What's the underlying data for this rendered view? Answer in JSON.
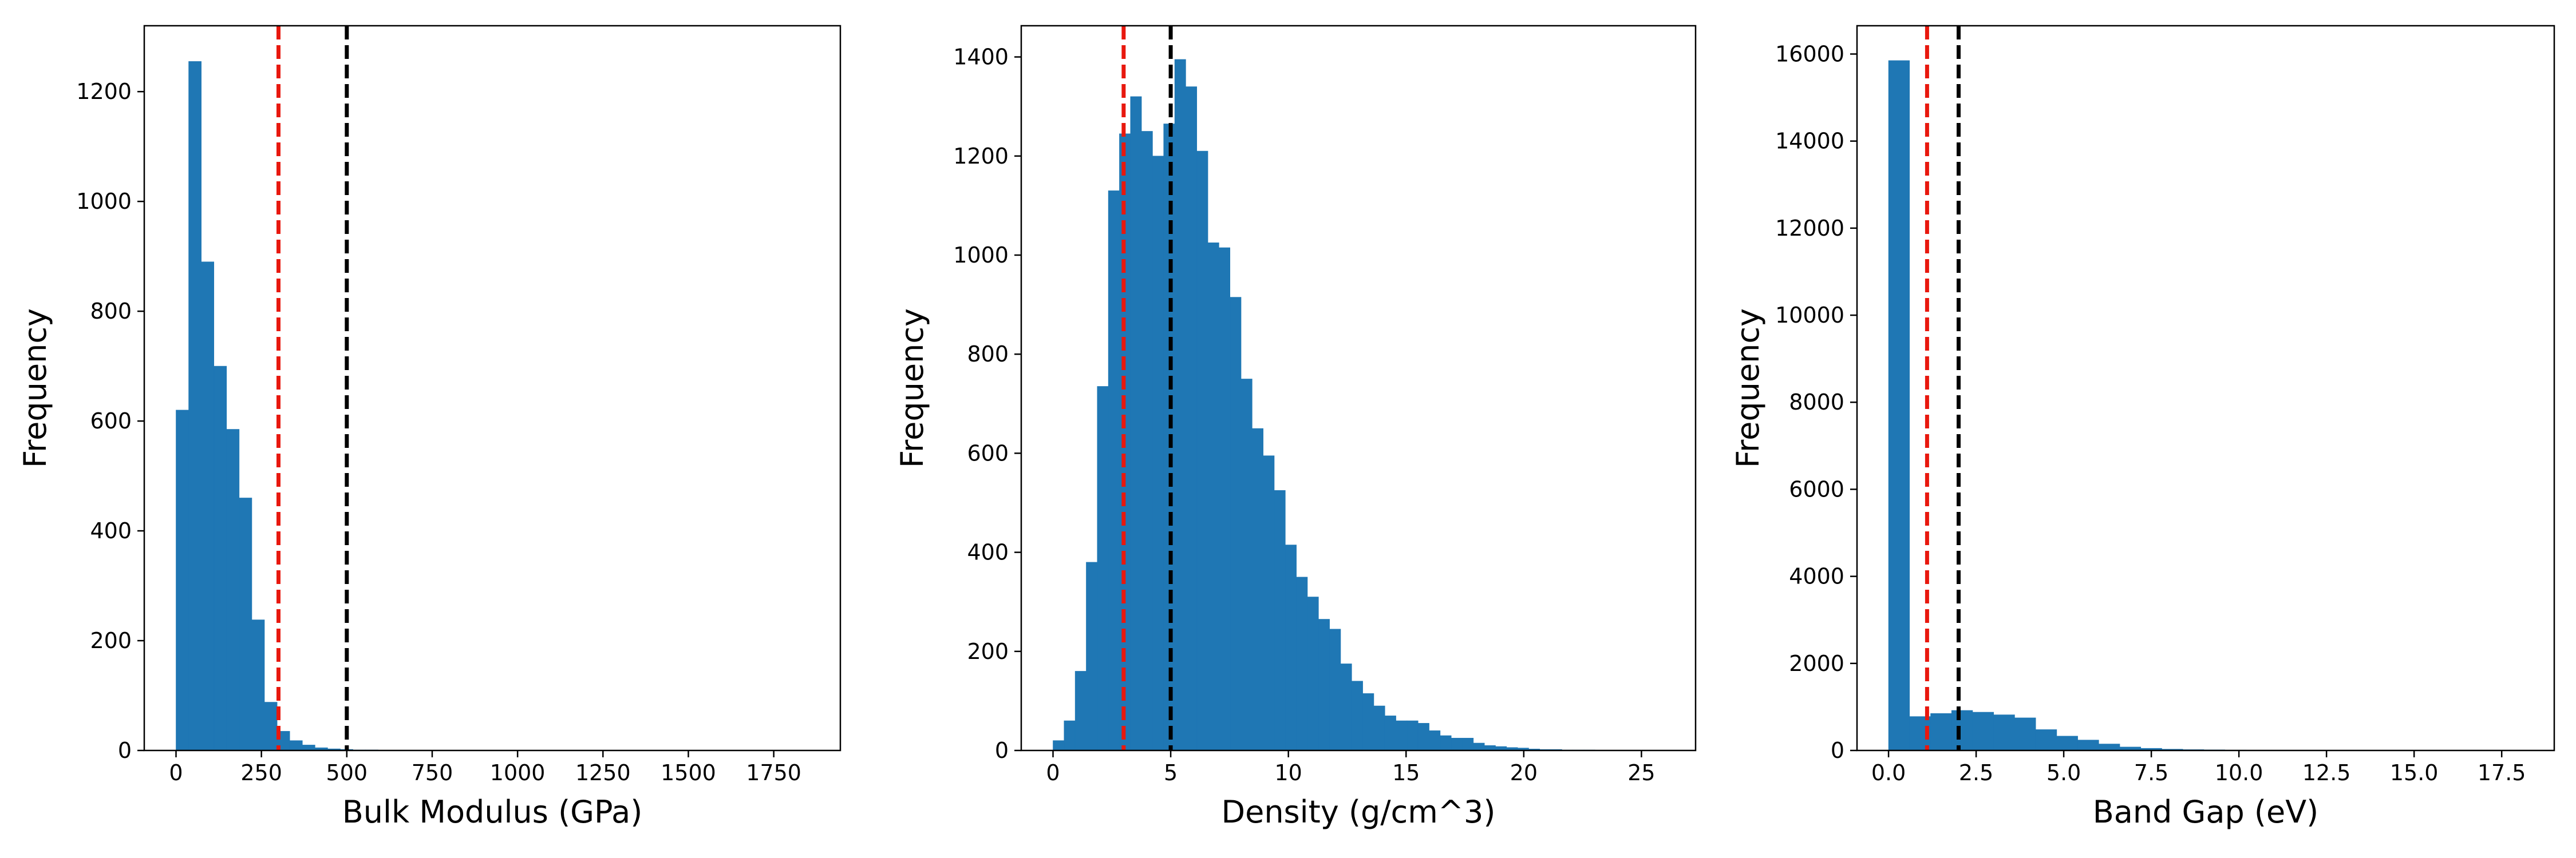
{
  "colors": {
    "bar": "#1f77b4",
    "red_line": "#e8180e",
    "black_line": "#000000",
    "axis": "#000000"
  },
  "chart_data": [
    {
      "type": "bar",
      "title": "",
      "xlabel": "Bulk Modulus (GPa)",
      "ylabel": "Frequency",
      "xlim": [
        -93,
        1945
      ],
      "ylim": [
        0,
        1320
      ],
      "xticks": [
        0,
        250,
        500,
        750,
        1000,
        1250,
        1500,
        1750
      ],
      "xtick_labels": [
        "0",
        "250",
        "500",
        "750",
        "1000",
        "1250",
        "1500",
        "1750"
      ],
      "yticks": [
        0,
        200,
        400,
        600,
        800,
        1000,
        1200
      ],
      "ytick_labels": [
        "0",
        "200",
        "400",
        "600",
        "800",
        "1000",
        "1200"
      ],
      "bin_width": 37,
      "bin_starts": [
        0,
        37,
        74,
        111,
        148,
        185,
        222,
        259,
        296,
        333,
        370,
        407,
        444,
        481,
        518,
        555
      ],
      "values": [
        620,
        1255,
        890,
        700,
        585,
        460,
        238,
        88,
        35,
        18,
        10,
        5,
        3,
        2,
        1,
        1
      ],
      "vlines": [
        {
          "x": 300,
          "color": "red",
          "style": "dashed"
        },
        {
          "x": 500,
          "color": "black",
          "style": "dashed"
        }
      ],
      "grid": false
    },
    {
      "type": "bar",
      "title": "",
      "xlabel": "Density (g/cm^3)",
      "ylabel": "Frequency",
      "xlim": [
        -1.35,
        27.3
      ],
      "ylim": [
        0,
        1463
      ],
      "xticks": [
        0,
        5,
        10,
        15,
        20,
        25
      ],
      "xtick_labels": [
        "0",
        "5",
        "10",
        "15",
        "20",
        "25"
      ],
      "yticks": [
        0,
        200,
        400,
        600,
        800,
        1000,
        1200,
        1400
      ],
      "ytick_labels": [
        "0",
        "200",
        "400",
        "600",
        "800",
        "1000",
        "1200",
        "1400"
      ],
      "bin_width": 0.47,
      "bin_starts": [
        0.0,
        0.47,
        0.94,
        1.41,
        1.88,
        2.35,
        2.82,
        3.29,
        3.76,
        4.23,
        4.7,
        5.17,
        5.64,
        6.11,
        6.58,
        7.05,
        7.52,
        7.99,
        8.46,
        8.93,
        9.4,
        9.87,
        10.34,
        10.81,
        11.28,
        11.75,
        12.22,
        12.69,
        13.16,
        13.63,
        14.1,
        14.57,
        15.04,
        15.51,
        15.98,
        16.45,
        16.92,
        17.39,
        17.86,
        18.33,
        18.8,
        19.27,
        19.74,
        20.21,
        20.68,
        21.15,
        21.62,
        22.09,
        22.56,
        23.03,
        23.5,
        23.97,
        24.44,
        24.91,
        25.38,
        25.85
      ],
      "values": [
        20,
        60,
        160,
        380,
        735,
        1130,
        1245,
        1320,
        1250,
        1200,
        1265,
        1395,
        1340,
        1210,
        1025,
        1015,
        915,
        750,
        650,
        595,
        525,
        415,
        350,
        310,
        265,
        245,
        175,
        140,
        115,
        90,
        70,
        60,
        60,
        55,
        40,
        30,
        25,
        25,
        15,
        10,
        8,
        6,
        5,
        3,
        2,
        2,
        1,
        1,
        1,
        0,
        0,
        0,
        0,
        0,
        0,
        0
      ],
      "vlines": [
        {
          "x": 3,
          "color": "red",
          "style": "dashed"
        },
        {
          "x": 5,
          "color": "black",
          "style": "dashed"
        }
      ],
      "grid": false
    },
    {
      "type": "bar",
      "title": "",
      "xlabel": "Band Gap (eV)",
      "ylabel": "Frequency",
      "xlim": [
        -0.9,
        19.0
      ],
      "ylim": [
        0,
        16650
      ],
      "xticks": [
        0,
        2.5,
        5,
        7.5,
        10,
        12.5,
        15,
        17.5
      ],
      "xtick_labels": [
        "0.0",
        "2.5",
        "5.0",
        "7.5",
        "10.0",
        "12.5",
        "15.0",
        "17.5"
      ],
      "yticks": [
        0,
        2000,
        4000,
        6000,
        8000,
        10000,
        12000,
        14000,
        16000
      ],
      "ytick_labels": [
        "0",
        "2000",
        "4000",
        "6000",
        "8000",
        "10000",
        "12000",
        "14000",
        "16000"
      ],
      "bin_width": 0.6,
      "bin_starts": [
        0.0,
        0.6,
        1.2,
        1.8,
        2.4,
        3.0,
        3.6,
        4.2,
        4.8,
        5.4,
        6.0,
        6.6,
        7.2,
        7.8,
        8.4,
        9.0,
        9.6,
        10.2,
        10.8,
        11.4,
        12.0,
        12.6,
        13.2,
        13.8,
        14.4,
        15.0,
        15.6,
        16.2,
        16.8,
        17.4
      ],
      "values": [
        15850,
        780,
        850,
        920,
        880,
        820,
        750,
        480,
        330,
        240,
        150,
        80,
        50,
        30,
        20,
        15,
        10,
        8,
        6,
        5,
        4,
        3,
        3,
        2,
        2,
        1,
        1,
        1,
        1,
        1
      ],
      "vlines": [
        {
          "x": 1.1,
          "color": "red",
          "style": "dashed"
        },
        {
          "x": 2.0,
          "color": "black",
          "style": "dashed"
        }
      ],
      "grid": false
    }
  ]
}
